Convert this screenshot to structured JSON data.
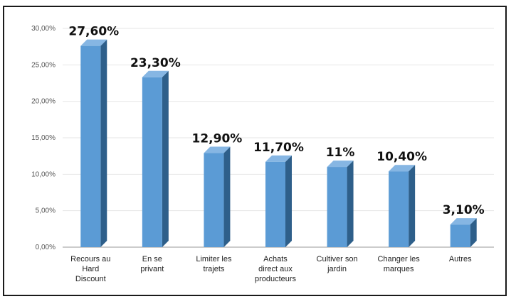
{
  "chart_data": {
    "type": "bar",
    "style": "3d-column",
    "title": "",
    "xlabel": "",
    "ylabel": "",
    "ylim": [
      0,
      30
    ],
    "grid": true,
    "legend": "none",
    "y_tick_values": [
      0,
      5,
      10,
      15,
      20,
      25,
      30
    ],
    "y_tick_labels": [
      "0,00%",
      "5,00%",
      "10,00%",
      "15,00%",
      "20,00%",
      "25,00%",
      "30,00%"
    ],
    "categories": [
      [
        "Recours au",
        "Hard",
        "Discount"
      ],
      [
        "En se",
        "privant"
      ],
      [
        "Limiter les",
        "trajets"
      ],
      [
        "Achats",
        "direct aux",
        "producteurs"
      ],
      [
        "Cultiver son",
        "jardin"
      ],
      [
        "Changer les",
        "marques"
      ],
      [
        "Autres"
      ]
    ],
    "values": [
      27.6,
      23.3,
      12.9,
      11.7,
      11,
      10.4,
      3.1
    ],
    "data_labels": [
      "27,60%",
      "23,30%",
      "12,90%",
      "11,70%",
      "11%",
      "10,40%",
      "3,10%"
    ],
    "colors": {
      "bar_front": "#5b9bd5",
      "bar_side": "#2e5f8a",
      "bar_top": "#86b6e3",
      "grid": "#e6e6e6",
      "axis": "#9a9a9a"
    }
  }
}
